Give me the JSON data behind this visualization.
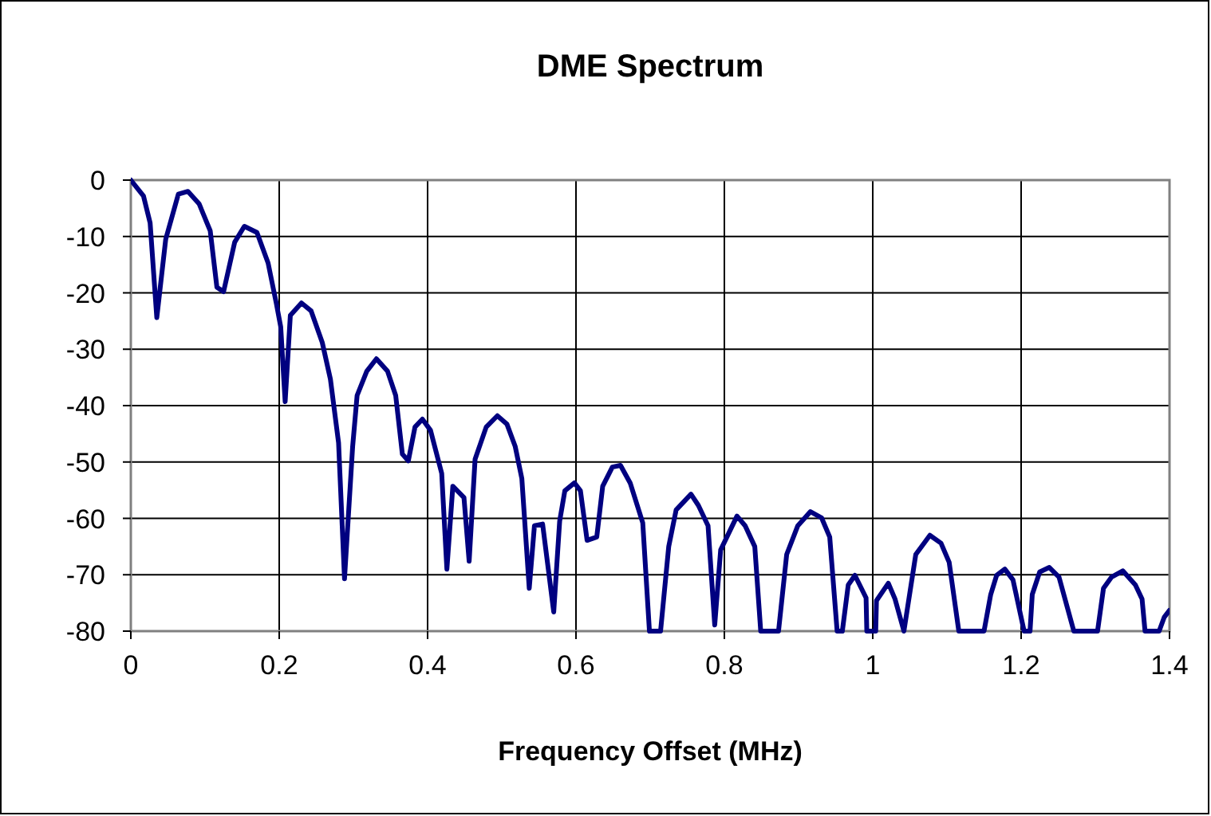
{
  "chart_data": {
    "type": "line",
    "title": "DME Spectrum",
    "xlabel": "Frequency Offset (MHz)",
    "xlim": [
      0,
      1.4
    ],
    "xticks": [
      0,
      {
        "value": 0.2,
        "label": "0.2"
      },
      {
        "value": 0.4,
        "label": "0.4"
      },
      {
        "value": 0.6,
        "label": "0.6"
      },
      {
        "value": 0.8,
        "label": "0.8"
      },
      1,
      {
        "value": 1.2,
        "label": "1.2"
      },
      {
        "value": 1.4,
        "label": "1.4"
      }
    ],
    "ylim": [
      -80,
      0
    ],
    "yticks": [
      -80,
      -70,
      -60,
      -50,
      -40,
      -30,
      -20,
      -10,
      0
    ],
    "grid": true,
    "marker": "none",
    "line_style": "solid",
    "series": [
      {
        "color": "#000080",
        "x": [
          0,
          0.017,
          0.026,
          0.035,
          0.047,
          0.064,
          0.077,
          0.092,
          0.107,
          0.116,
          0.125,
          0.14,
          0.153,
          0.17,
          0.185,
          0.196,
          0.202,
          0.208,
          0.215,
          0.23,
          0.243,
          0.258,
          0.269,
          0.28,
          0.288,
          0.299,
          0.305,
          0.318,
          0.331,
          0.346,
          0.357,
          0.366,
          0.374,
          0.383,
          0.393,
          0.404,
          0.419,
          0.426,
          0.434,
          0.449,
          0.456,
          0.464,
          0.479,
          0.494,
          0.507,
          0.518,
          0.527,
          0.537,
          0.544,
          0.555,
          0.57,
          0.578,
          0.585,
          0.598,
          0.606,
          0.615,
          0.628,
          0.636,
          0.649,
          0.66,
          0.673,
          0.69,
          0.699,
          0.714,
          0.725,
          0.735,
          0.755,
          0.765,
          0.778,
          0.787,
          0.795,
          0.817,
          0.828,
          0.841,
          0.849,
          0.873,
          0.884,
          0.899,
          0.916,
          0.931,
          0.942,
          0.952,
          0.959,
          0.967,
          0.976,
          0.991,
          0.992,
          1.004,
          1.005,
          1.021,
          1.03,
          1.042,
          1.058,
          1.077,
          1.092,
          1.103,
          1.116,
          1.15,
          1.159,
          1.167,
          1.178,
          1.189,
          1.204,
          1.212,
          1.215,
          1.225,
          1.238,
          1.251,
          1.271,
          1.303,
          1.311,
          1.322,
          1.337,
          1.354,
          1.363,
          1.367,
          1.386,
          1.393,
          1.4
        ],
        "values": [
          0,
          -2.8,
          -7.6,
          -24.4,
          -10.5,
          -2.5,
          -2,
          -4.2,
          -9,
          -19,
          -19.8,
          -11,
          -8.2,
          -9.3,
          -14.7,
          -21.8,
          -26,
          -39.3,
          -24,
          -21.8,
          -23.2,
          -28.8,
          -35.3,
          -46.6,
          -70.7,
          -47.2,
          -38.2,
          -33.9,
          -31.7,
          -33.9,
          -38.2,
          -48.6,
          -49.8,
          -43.8,
          -42.4,
          -44.4,
          -52,
          -69,
          -54.3,
          -56.3,
          -67.6,
          -49.5,
          -43.8,
          -41.8,
          -43.3,
          -47.2,
          -52.9,
          -72.4,
          -61.3,
          -61,
          -76.6,
          -60.5,
          -55.1,
          -53.7,
          -55.1,
          -63.9,
          -63.3,
          -54.3,
          -50.9,
          -50.6,
          -53.7,
          -60.8,
          -80,
          -80,
          -65,
          -58.5,
          -55.7,
          -57.7,
          -61.3,
          -78.9,
          -65.6,
          -59.6,
          -61.3,
          -65,
          -80,
          -80,
          -66.4,
          -61.3,
          -58.8,
          -59.9,
          -63.3,
          -80,
          -80,
          -71.8,
          -70.1,
          -74.1,
          -80,
          -80,
          -74.6,
          -71.5,
          -74.3,
          -80,
          -66.4,
          -63,
          -64.4,
          -67.8,
          -80,
          -80,
          -73.5,
          -70.1,
          -69,
          -70.9,
          -80,
          -80,
          -73.5,
          -69.5,
          -68.7,
          -70.4,
          -80,
          -80,
          -72.4,
          -70.4,
          -69.3,
          -71.8,
          -74.3,
          -80,
          -80,
          -77.5,
          -76.3
        ]
      }
    ]
  }
}
